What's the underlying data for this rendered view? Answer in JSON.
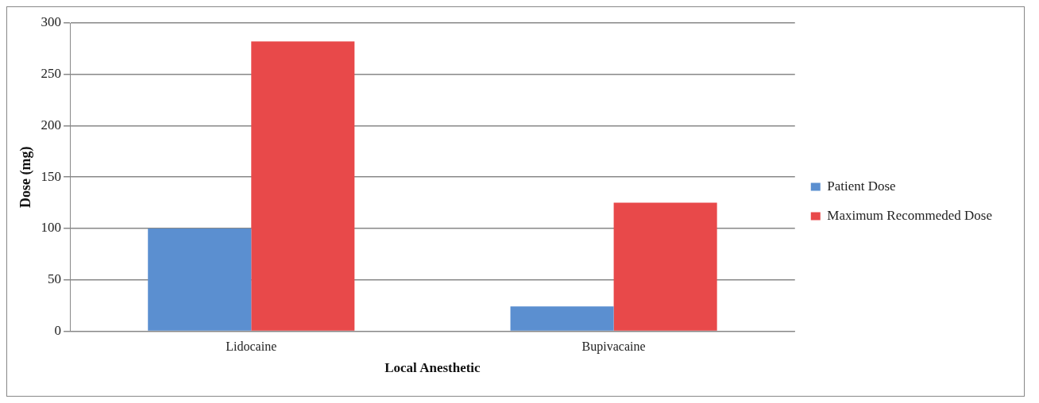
{
  "chart_data": {
    "type": "bar",
    "xlabel": "Local Anesthetic",
    "ylabel": "Dose (mg)",
    "categories": [
      "Lidocaine",
      "Bupivacaine"
    ],
    "series": [
      {
        "name": "Patient Dose",
        "color": "#5b8fd0",
        "values": [
          100,
          24
        ]
      },
      {
        "name": "Maximum Recommeded Dose",
        "color": "#e8494a",
        "values": [
          282,
          125
        ]
      }
    ],
    "ylim": [
      0,
      300
    ],
    "yticks": [
      0,
      50,
      100,
      150,
      200,
      250,
      300
    ],
    "grid": "y",
    "legend": "right"
  }
}
